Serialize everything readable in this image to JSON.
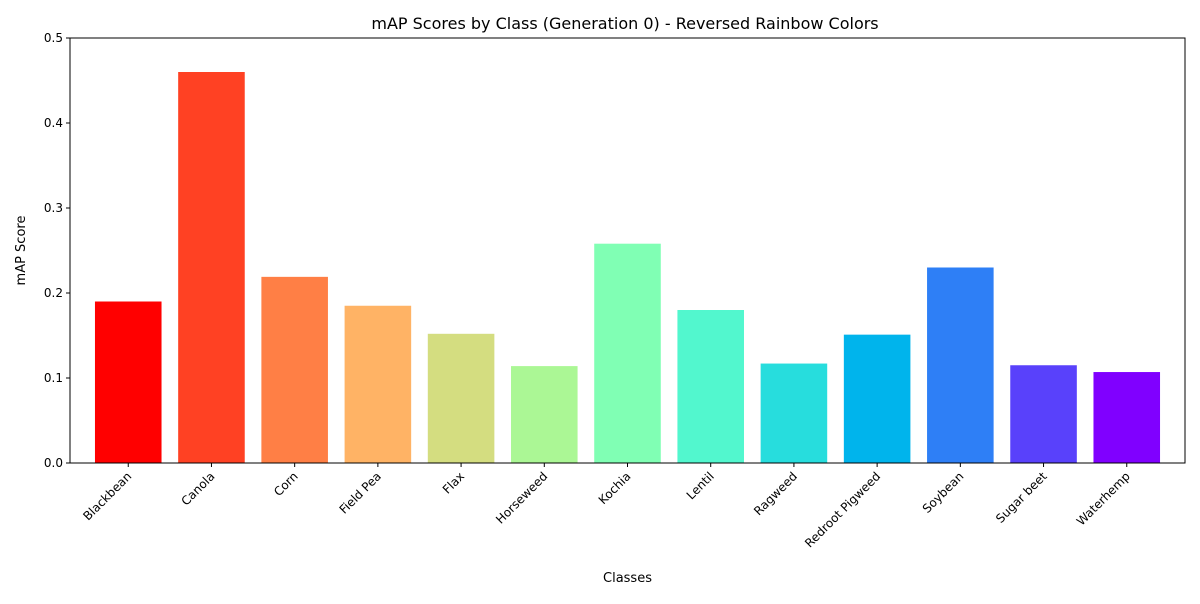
{
  "chart_data": {
    "type": "bar",
    "title": "mAP Scores by Class (Generation 0) - Reversed Rainbow Colors",
    "xlabel": "Classes",
    "ylabel": "mAP Score",
    "ylim": [
      0,
      0.5
    ],
    "yticks": [
      "0.0",
      "0.1",
      "0.2",
      "0.3",
      "0.4",
      "0.5"
    ],
    "grid": false,
    "categories": [
      "Blackbean",
      "Canola",
      "Corn",
      "Field Pea",
      "Flax",
      "Horseweed",
      "Kochia",
      "Lentil",
      "Ragweed",
      "Redroot Pigweed",
      "Soybean",
      "Sugar beet",
      "Waterhemp"
    ],
    "values": [
      0.19,
      0.46,
      0.219,
      0.185,
      0.152,
      0.114,
      0.258,
      0.18,
      0.117,
      0.151,
      0.23,
      0.115,
      0.107
    ],
    "colors": [
      "#ff0000",
      "#ff4123",
      "#ff7f45",
      "#ffb365",
      "#d4dd80",
      "#abf795",
      "#80ffb4",
      "#52f7ce",
      "#27dddd",
      "#00b4ec",
      "#2e7ff6",
      "#5941fb",
      "#8000ff"
    ]
  }
}
